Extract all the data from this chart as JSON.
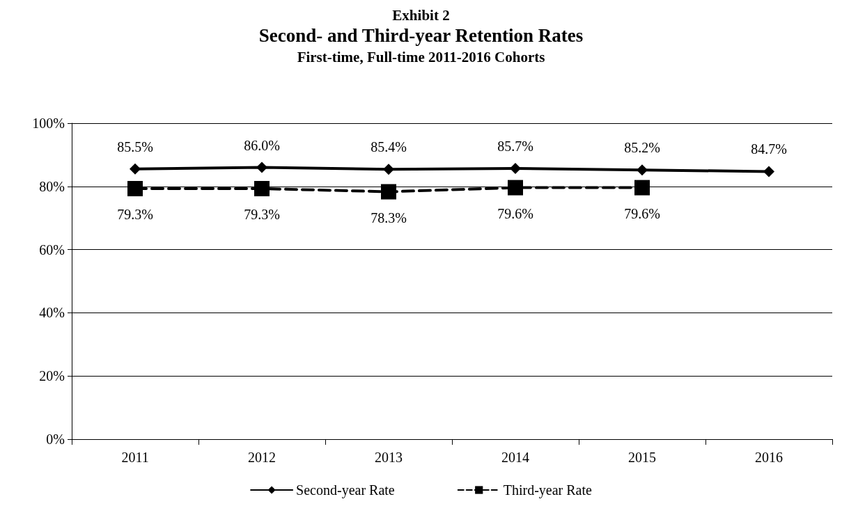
{
  "chart_data": {
    "type": "line",
    "annotations": [
      "Exhibit 2"
    ],
    "title": "Second- and Third-year Retention Rates",
    "subtitle": "First-time, Full-time 2011-2016 Cohorts",
    "categories": [
      "2011",
      "2012",
      "2013",
      "2014",
      "2015",
      "2016"
    ],
    "series": [
      {
        "name": "Second-year Rate",
        "color": "#000000",
        "marker": "diamond",
        "line_style": "solid",
        "values": [
          85.5,
          86.0,
          85.4,
          85.7,
          85.2,
          84.7
        ],
        "value_labels": [
          "85.5%",
          "86.0%",
          "85.4%",
          "85.7%",
          "85.2%",
          "84.7%"
        ]
      },
      {
        "name": "Third-year Rate",
        "color": "#000000",
        "marker": "square",
        "line_style": "dashed",
        "values": [
          79.3,
          79.3,
          78.3,
          79.6,
          79.6,
          null
        ],
        "value_labels": [
          "79.3%",
          "79.3%",
          "78.3%",
          "79.6%",
          "79.6%",
          null
        ]
      }
    ],
    "ylim": [
      0,
      100
    ],
    "yticks": [
      {
        "value": 0,
        "label": "0%"
      },
      {
        "value": 20,
        "label": "20%"
      },
      {
        "value": 40,
        "label": "40%"
      },
      {
        "value": 60,
        "label": "60%"
      },
      {
        "value": 80,
        "label": "80%"
      },
      {
        "value": 100,
        "label": "100%"
      }
    ],
    "grid": "y",
    "legend": "bottom"
  }
}
